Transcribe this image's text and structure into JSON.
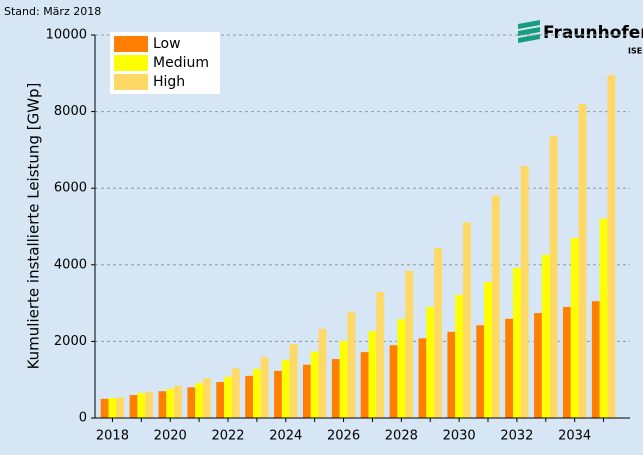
{
  "chart_data": {
    "type": "bar",
    "subtitle": "Stand: März 2018",
    "y_label": "Kumulierte installierte Leistung [GWp]",
    "categories": [
      "2018",
      null,
      "2020",
      null,
      "2022",
      null,
      "2024",
      null,
      "2026",
      null,
      "2028",
      null,
      "2030",
      null,
      "2032",
      null,
      "2034",
      null
    ],
    "series": [
      {
        "name": "Low",
        "color": "#ff8000",
        "values": [
          500,
          600,
          700,
          800,
          940,
          1100,
          1230,
          1390,
          1540,
          1720,
          1900,
          2080,
          2250,
          2420,
          2590,
          2740,
          2900,
          3050
        ]
      },
      {
        "name": "Medium",
        "color": "#ffff00",
        "values": [
          520,
          650,
          760,
          910,
          1070,
          1280,
          1510,
          1730,
          2010,
          2270,
          2580,
          2900,
          3210,
          3550,
          3920,
          4260,
          4700,
          5200
        ]
      },
      {
        "name": "High",
        "color": "#ffd966",
        "values": [
          540,
          680,
          840,
          1040,
          1300,
          1590,
          1930,
          2320,
          2770,
          3290,
          3840,
          4440,
          5110,
          5810,
          6580,
          7360,
          8200,
          8950
        ]
      }
    ],
    "ylim": [
      0,
      10000
    ],
    "yticks": [
      0,
      2000,
      4000,
      6000,
      8000,
      10000
    ],
    "grid": true,
    "legend": "top-left"
  },
  "logo": {
    "name": "Fraunhofer",
    "unit": "ISE"
  }
}
